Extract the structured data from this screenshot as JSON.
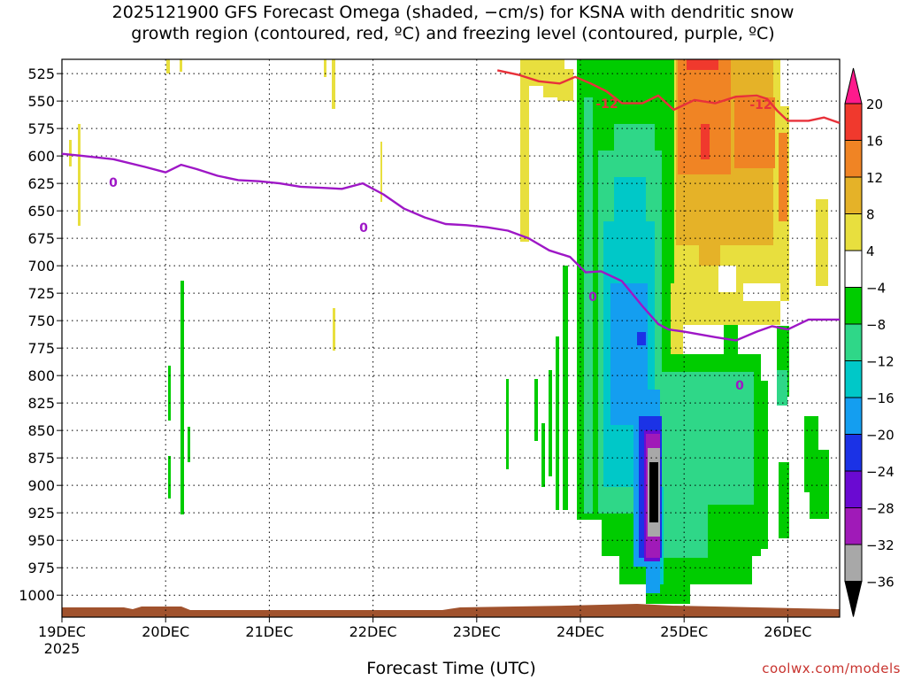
{
  "chart_data": {
    "type": "heatmap",
    "title": "2025121900 GFS Forecast Omega (shaded, −cm/s) for KSNA with dendritic snow\ngrowth region (contoured, red, ºC) and freezing level (contoured, purple, ºC)",
    "xlabel": "Forecast Time (UTC)",
    "credit": "coolwx.com/models",
    "x_ticks": [
      "19DEC",
      "20DEC",
      "21DEC",
      "22DEC",
      "23DEC",
      "24DEC",
      "25DEC",
      "26DEC"
    ],
    "x_year": "2025",
    "xlim": [
      0,
      7.5
    ],
    "y_ticks": [
      525,
      550,
      575,
      600,
      625,
      650,
      675,
      700,
      725,
      750,
      775,
      800,
      825,
      850,
      875,
      900,
      925,
      950,
      975,
      1000
    ],
    "ylim": [
      1020,
      512
    ],
    "grid": true,
    "colorbar": {
      "levels": [
        "20",
        "16",
        "12",
        "8",
        "4",
        "−4",
        "−8",
        "−12",
        "−16",
        "−20",
        "−24",
        "−28",
        "−32",
        "−36"
      ],
      "colors": [
        "#ff1a8c",
        "#f0392d",
        "#f08424",
        "#e5b228",
        "#e8df3e",
        "#ffffff",
        "#00cc00",
        "#2fd788",
        "#00c8c8",
        "#149ef0",
        "#1b32e6",
        "#6a0ad2",
        "#a01ab8",
        "#a8a8a8",
        "#000000"
      ]
    },
    "series": [
      {
        "name": "0",
        "color": "#9e17c6",
        "x": [
          0,
          0.2,
          0.5,
          0.8,
          1.0,
          1.15,
          1.3,
          1.5,
          1.7,
          1.9,
          2.1,
          2.3,
          2.5,
          2.7,
          2.9,
          3.1,
          3.3,
          3.5,
          3.7,
          3.9,
          4.1,
          4.3,
          4.5,
          4.7,
          4.9,
          5.05,
          5.2,
          5.4,
          5.6,
          5.75,
          5.85,
          6.0,
          6.3,
          6.5,
          6.7,
          6.85,
          7.0,
          7.2,
          7.5
        ],
        "values": [
          598,
          600,
          603,
          610,
          615,
          608,
          612,
          618,
          622,
          623,
          625,
          628,
          629,
          630,
          625,
          635,
          648,
          656,
          662,
          663,
          665,
          668,
          675,
          686,
          692,
          706,
          705,
          714,
          737,
          753,
          758,
          760,
          765,
          768,
          760,
          755,
          758,
          749,
          749
        ]
      },
      {
        "name": "-12",
        "color": "#e8313a",
        "x": [
          4.2,
          4.4,
          4.6,
          4.8,
          4.95,
          5.1,
          5.25,
          5.4,
          5.6,
          5.75,
          5.9,
          6.1,
          6.3,
          6.5,
          6.7,
          6.8,
          6.9,
          7.0,
          7.2,
          7.35,
          7.5
        ],
        "values": [
          522,
          526,
          532,
          534,
          528,
          534,
          541,
          552,
          552,
          545,
          558,
          549,
          552,
          546,
          545,
          548,
          559,
          568,
          568,
          565,
          570
        ]
      }
    ],
    "contour_labels": [
      "0",
      "0",
      "0",
      "0",
      "-12",
      "-12"
    ]
  }
}
